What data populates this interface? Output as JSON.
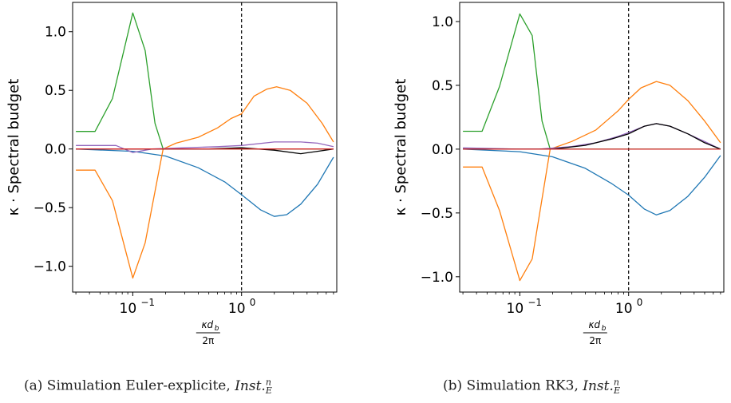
{
  "figure": {
    "captions": [
      {
        "prefix": "(a) Simulation Euler-explicite, ",
        "math_base": "Inst.",
        "math_sub": "E",
        "math_sup": "n"
      },
      {
        "prefix": "(b) Simulation RK3, ",
        "math_base": "Inst.",
        "math_sub": "E",
        "math_sup": "n"
      }
    ]
  },
  "colors": {
    "blue": "#1f77b4",
    "orange": "#ff7f0e",
    "green": "#2ca02c",
    "purple": "#9467bd",
    "red": "#d62728",
    "black": "#000000"
  },
  "chart_data": [
    {
      "type": "line",
      "xscale": "log",
      "xlim": [
        0.028,
        7.5
      ],
      "ylim": [
        -1.22,
        1.25
      ],
      "xlabel": "κd_b / 2π",
      "ylabel": "κ · Spectral budget",
      "yticks": [
        -1.0,
        -0.5,
        0.0,
        0.5,
        1.0
      ],
      "ytick_labels": [
        "−1.0",
        "−0.5",
        "0.0",
        "0.5",
        "1.0"
      ],
      "xtick_labels": [
        {
          "x": 0.1,
          "base": "10",
          "exp": "−1"
        },
        {
          "x": 1,
          "base": "10",
          "exp": "0"
        }
      ],
      "vline": 1.0,
      "series": [
        {
          "color": "blue",
          "points": [
            [
              0.03,
              0.0
            ],
            [
              0.1,
              -0.02
            ],
            [
              0.2,
              -0.06
            ],
            [
              0.4,
              -0.16
            ],
            [
              0.7,
              -0.28
            ],
            [
              1.0,
              -0.39
            ],
            [
              1.5,
              -0.52
            ],
            [
              2.0,
              -0.575
            ],
            [
              2.6,
              -0.56
            ],
            [
              3.5,
              -0.47
            ],
            [
              5.0,
              -0.3
            ],
            [
              7.0,
              -0.07
            ]
          ]
        },
        {
          "color": "orange",
          "points": [
            [
              0.03,
              -0.18
            ],
            [
              0.045,
              -0.18
            ],
            [
              0.065,
              -0.44
            ],
            [
              0.1,
              -1.1
            ],
            [
              0.13,
              -0.8
            ],
            [
              0.19,
              0.0
            ],
            [
              0.25,
              0.05
            ],
            [
              0.4,
              0.1
            ],
            [
              0.6,
              0.18
            ],
            [
              0.8,
              0.26
            ],
            [
              1.0,
              0.3
            ],
            [
              1.3,
              0.45
            ],
            [
              1.7,
              0.51
            ],
            [
              2.1,
              0.53
            ],
            [
              2.8,
              0.5
            ],
            [
              4.0,
              0.39
            ],
            [
              5.5,
              0.22
            ],
            [
              7.0,
              0.06
            ]
          ]
        },
        {
          "color": "green",
          "points": [
            [
              0.03,
              0.15
            ],
            [
              0.045,
              0.15
            ],
            [
              0.065,
              0.43
            ],
            [
              0.1,
              1.16
            ],
            [
              0.13,
              0.84
            ],
            [
              0.16,
              0.22
            ],
            [
              0.19,
              0.0
            ],
            [
              0.25,
              0.0
            ],
            [
              7.0,
              0.0
            ]
          ]
        },
        {
          "color": "purple",
          "points": [
            [
              0.03,
              0.03
            ],
            [
              0.07,
              0.03
            ],
            [
              0.1,
              -0.03
            ],
            [
              0.15,
              0.0
            ],
            [
              0.3,
              0.01
            ],
            [
              0.6,
              0.02
            ],
            [
              1.0,
              0.03
            ],
            [
              2.0,
              0.06
            ],
            [
              3.5,
              0.06
            ],
            [
              5.0,
              0.05
            ],
            [
              7.0,
              0.02
            ]
          ]
        },
        {
          "color": "black",
          "points": [
            [
              0.03,
              0.0
            ],
            [
              0.5,
              0.0
            ],
            [
              1.0,
              0.01
            ],
            [
              2.0,
              -0.01
            ],
            [
              3.5,
              -0.04
            ],
            [
              5.0,
              -0.02
            ],
            [
              7.0,
              0.0
            ]
          ]
        },
        {
          "color": "red",
          "points": [
            [
              0.03,
              0.0
            ],
            [
              7.0,
              0.0
            ]
          ]
        }
      ]
    },
    {
      "type": "line",
      "xscale": "log",
      "xlim": [
        0.028,
        7.5
      ],
      "ylim": [
        -1.12,
        1.15
      ],
      "xlabel": "κd_b / 2π",
      "ylabel": "κ · Spectral budget",
      "yticks": [
        -1.0,
        -0.5,
        0.0,
        0.5,
        1.0
      ],
      "ytick_labels": [
        "−1.0",
        "−0.5",
        "0.0",
        "0.5",
        "1.0"
      ],
      "xtick_labels": [
        {
          "x": 0.1,
          "base": "10",
          "exp": "−1"
        },
        {
          "x": 1,
          "base": "10",
          "exp": "0"
        }
      ],
      "vline": 1.0,
      "series": [
        {
          "color": "blue",
          "points": [
            [
              0.03,
              0.0
            ],
            [
              0.1,
              -0.02
            ],
            [
              0.2,
              -0.06
            ],
            [
              0.4,
              -0.15
            ],
            [
              0.7,
              -0.27
            ],
            [
              1.0,
              -0.36
            ],
            [
              1.4,
              -0.47
            ],
            [
              1.8,
              -0.515
            ],
            [
              2.4,
              -0.48
            ],
            [
              3.5,
              -0.37
            ],
            [
              5.0,
              -0.22
            ],
            [
              7.0,
              -0.05
            ]
          ]
        },
        {
          "color": "orange",
          "points": [
            [
              0.03,
              -0.14
            ],
            [
              0.045,
              -0.14
            ],
            [
              0.065,
              -0.48
            ],
            [
              0.1,
              -1.03
            ],
            [
              0.13,
              -0.86
            ],
            [
              0.19,
              0.0
            ],
            [
              0.3,
              0.06
            ],
            [
              0.5,
              0.15
            ],
            [
              0.8,
              0.3
            ],
            [
              1.0,
              0.39
            ],
            [
              1.3,
              0.48
            ],
            [
              1.8,
              0.53
            ],
            [
              2.4,
              0.5
            ],
            [
              3.5,
              0.38
            ],
            [
              5.0,
              0.22
            ],
            [
              7.0,
              0.05
            ]
          ]
        },
        {
          "color": "green",
          "points": [
            [
              0.03,
              0.14
            ],
            [
              0.045,
              0.14
            ],
            [
              0.065,
              0.49
            ],
            [
              0.1,
              1.06
            ],
            [
              0.13,
              0.89
            ],
            [
              0.16,
              0.22
            ],
            [
              0.19,
              0.0
            ],
            [
              0.25,
              0.0
            ],
            [
              7.0,
              0.0
            ]
          ]
        },
        {
          "color": "purple",
          "points": [
            [
              0.03,
              0.01
            ],
            [
              0.1,
              0.0
            ],
            [
              0.15,
              0.0
            ],
            [
              0.3,
              0.02
            ],
            [
              0.5,
              0.05
            ],
            [
              0.8,
              0.1
            ],
            [
              1.0,
              0.13
            ],
            [
              1.4,
              0.18
            ],
            [
              1.8,
              0.2
            ],
            [
              2.4,
              0.18
            ],
            [
              3.5,
              0.12
            ],
            [
              5.0,
              0.06
            ],
            [
              7.0,
              0.0
            ]
          ]
        },
        {
          "color": "black",
          "points": [
            [
              0.03,
              0.0
            ],
            [
              0.2,
              0.0
            ],
            [
              0.4,
              0.03
            ],
            [
              0.7,
              0.08
            ],
            [
              1.0,
              0.12
            ],
            [
              1.4,
              0.18
            ],
            [
              1.8,
              0.2
            ],
            [
              2.4,
              0.18
            ],
            [
              3.5,
              0.12
            ],
            [
              5.0,
              0.05
            ],
            [
              7.0,
              0.0
            ]
          ]
        },
        {
          "color": "red",
          "points": [
            [
              0.03,
              0.0
            ],
            [
              7.0,
              0.0
            ]
          ]
        }
      ]
    }
  ]
}
